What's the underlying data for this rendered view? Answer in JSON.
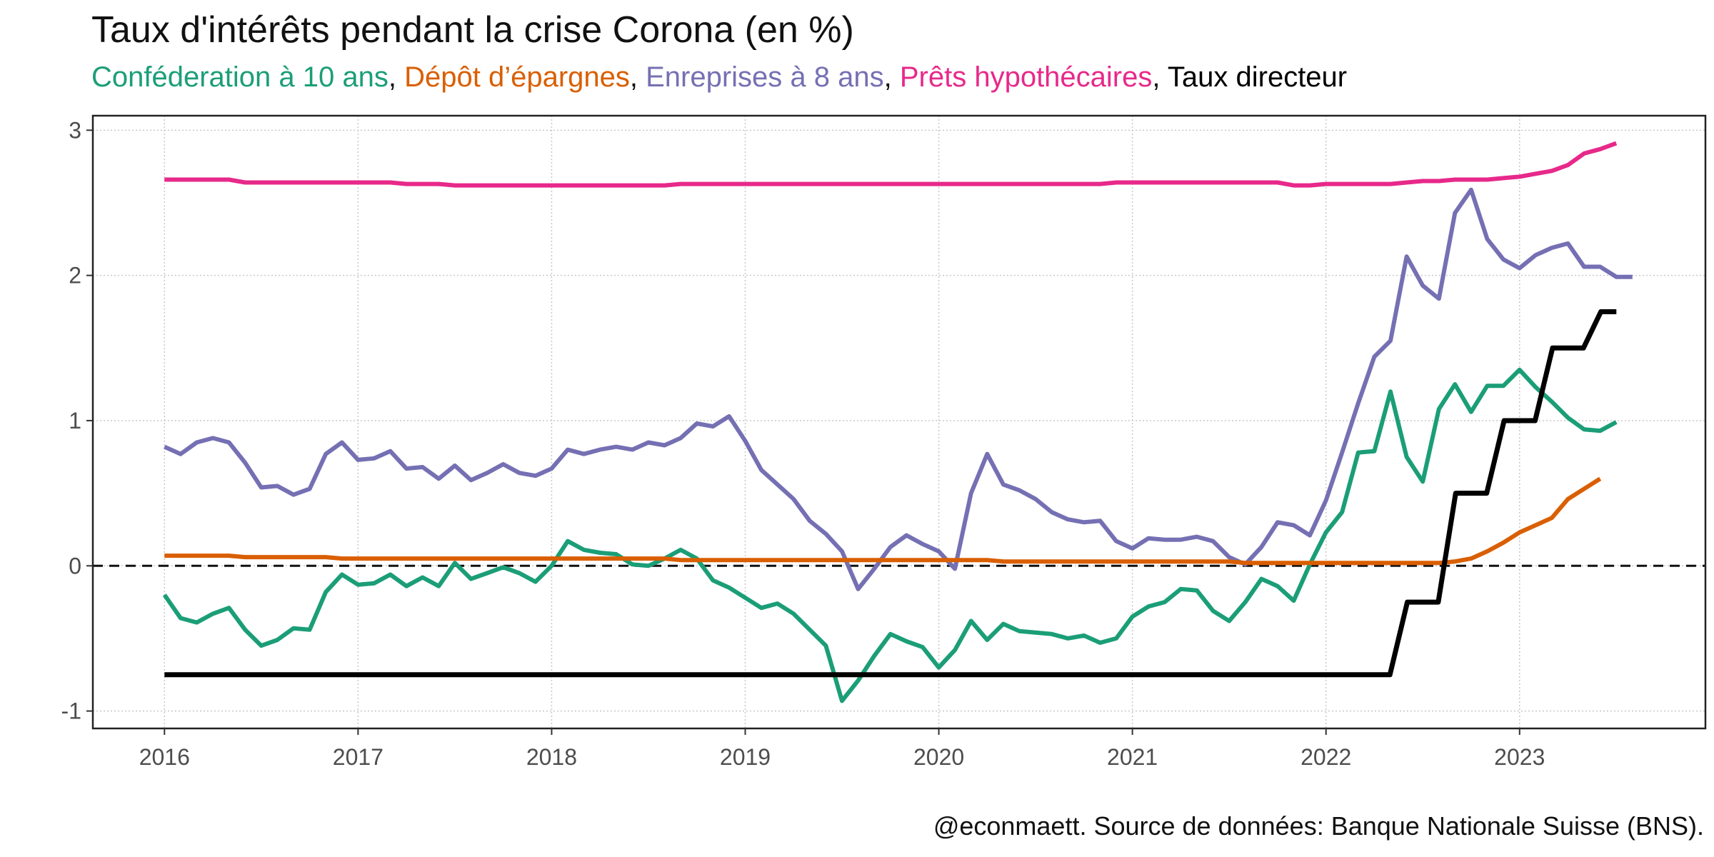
{
  "title": "Taux d'intérêts pendant la crise Corona (en %)",
  "subtitle": {
    "parts": [
      {
        "text": "Conféderation à 10 ans",
        "color": "#1b9e77"
      },
      {
        "text": ", ",
        "color": "#111111"
      },
      {
        "text": "Dépôt d’épargnes",
        "color": "#d95f02"
      },
      {
        "text": ", ",
        "color": "#111111"
      },
      {
        "text": "Enreprises à 8 ans",
        "color": "#7570b3"
      },
      {
        "text": ", ",
        "color": "#111111"
      },
      {
        "text": "Prêts hypothécaires",
        "color": "#e7298a"
      },
      {
        "text": ", ",
        "color": "#111111"
      },
      {
        "text": "Taux directeur",
        "color": "#000000"
      }
    ]
  },
  "caption": "@econmaett. Source de données: Banque Nationale Suisse (BNS).",
  "chart_data": {
    "type": "line",
    "xlim": [
      2015.63,
      2023.96
    ],
    "ylim": [
      -1.12,
      3.1
    ],
    "x_ticks": [
      2016,
      2017,
      2018,
      2019,
      2020,
      2021,
      2022,
      2023
    ],
    "x_tick_labels": [
      "2016",
      "2017",
      "2018",
      "2019",
      "2020",
      "2021",
      "2022",
      "2023"
    ],
    "y_ticks": [
      -1,
      0,
      1,
      2,
      3
    ],
    "y_tick_labels": [
      "-1",
      "0",
      "1",
      "2",
      "3"
    ],
    "zero_line": true,
    "grid": true,
    "series": [
      {
        "name": "Prêts hypothécaires",
        "color": "#e7298a",
        "start": 2016.0,
        "step": 0.08333,
        "values": [
          2.66,
          2.66,
          2.66,
          2.66,
          2.66,
          2.64,
          2.64,
          2.64,
          2.64,
          2.64,
          2.64,
          2.64,
          2.64,
          2.64,
          2.64,
          2.63,
          2.63,
          2.63,
          2.62,
          2.62,
          2.62,
          2.62,
          2.62,
          2.62,
          2.62,
          2.62,
          2.62,
          2.62,
          2.62,
          2.62,
          2.62,
          2.62,
          2.63,
          2.63,
          2.63,
          2.63,
          2.63,
          2.63,
          2.63,
          2.63,
          2.63,
          2.63,
          2.63,
          2.63,
          2.63,
          2.63,
          2.63,
          2.63,
          2.63,
          2.63,
          2.63,
          2.63,
          2.63,
          2.63,
          2.63,
          2.63,
          2.63,
          2.63,
          2.63,
          2.64,
          2.64,
          2.64,
          2.64,
          2.64,
          2.64,
          2.64,
          2.64,
          2.64,
          2.64,
          2.64,
          2.62,
          2.62,
          2.63,
          2.63,
          2.63,
          2.63,
          2.63,
          2.64,
          2.65,
          2.65,
          2.66,
          2.66,
          2.66,
          2.67,
          2.68,
          2.7,
          2.72,
          2.76,
          2.84,
          2.87,
          2.91
        ]
      },
      {
        "name": "Enreprises à 8 ans",
        "color": "#7570b3",
        "start": 2016.0,
        "step": 0.08333,
        "values": [
          0.82,
          0.77,
          0.85,
          0.88,
          0.85,
          0.71,
          0.54,
          0.55,
          0.49,
          0.53,
          0.77,
          0.85,
          0.73,
          0.74,
          0.79,
          0.67,
          0.68,
          0.6,
          0.69,
          0.59,
          0.64,
          0.7,
          0.64,
          0.62,
          0.67,
          0.8,
          0.77,
          0.8,
          0.82,
          0.8,
          0.85,
          0.83,
          0.88,
          0.98,
          0.96,
          1.03,
          0.86,
          0.66,
          0.56,
          0.46,
          0.31,
          0.22,
          0.1,
          -0.16,
          -0.02,
          0.13,
          0.21,
          0.15,
          0.1,
          -0.02,
          0.5,
          0.77,
          0.56,
          0.52,
          0.46,
          0.37,
          0.32,
          0.3,
          0.31,
          0.17,
          0.12,
          0.19,
          0.18,
          0.18,
          0.2,
          0.17,
          0.06,
          0.01,
          0.13,
          0.3,
          0.28,
          0.21,
          0.45,
          0.78,
          1.12,
          1.44,
          1.55,
          2.13,
          1.93,
          1.84,
          2.43,
          2.59,
          2.25,
          2.11,
          2.05,
          2.14,
          2.19,
          2.22,
          2.06,
          2.06,
          1.99,
          1.99
        ]
      },
      {
        "name": "Conféderation à 10 ans",
        "color": "#1b9e77",
        "start": 2016.0,
        "step": 0.08333,
        "values": [
          -0.2,
          -0.36,
          -0.39,
          -0.33,
          -0.29,
          -0.44,
          -0.55,
          -0.51,
          -0.43,
          -0.44,
          -0.18,
          -0.06,
          -0.13,
          -0.12,
          -0.06,
          -0.14,
          -0.08,
          -0.14,
          0.02,
          -0.09,
          -0.05,
          -0.01,
          -0.05,
          -0.11,
          0.0,
          0.17,
          0.11,
          0.09,
          0.08,
          0.01,
          0.0,
          0.05,
          0.11,
          0.05,
          -0.1,
          -0.15,
          -0.22,
          -0.29,
          -0.26,
          -0.33,
          -0.44,
          -0.55,
          -0.93,
          -0.79,
          -0.62,
          -0.47,
          -0.52,
          -0.56,
          -0.7,
          -0.58,
          -0.38,
          -0.51,
          -0.4,
          -0.45,
          -0.46,
          -0.47,
          -0.5,
          -0.48,
          -0.53,
          -0.5,
          -0.35,
          -0.28,
          -0.25,
          -0.16,
          -0.17,
          -0.31,
          -0.38,
          -0.25,
          -0.09,
          -0.14,
          -0.24,
          0.01,
          0.23,
          0.37,
          0.78,
          0.79,
          1.2,
          0.75,
          0.58,
          1.08,
          1.25,
          1.06,
          1.24,
          1.24,
          1.35,
          1.23,
          1.13,
          1.02,
          0.94,
          0.93,
          0.99
        ]
      },
      {
        "name": "Dépôt d’épargnes",
        "color": "#d95f02",
        "start": 2016.0,
        "step": 0.08333,
        "values": [
          0.07,
          0.07,
          0.07,
          0.07,
          0.07,
          0.06,
          0.06,
          0.06,
          0.06,
          0.06,
          0.06,
          0.05,
          0.05,
          0.05,
          0.05,
          0.05,
          0.05,
          0.05,
          0.05,
          0.05,
          0.05,
          0.05,
          0.05,
          0.05,
          0.05,
          0.05,
          0.05,
          0.05,
          0.05,
          0.05,
          0.05,
          0.05,
          0.04,
          0.04,
          0.04,
          0.04,
          0.04,
          0.04,
          0.04,
          0.04,
          0.04,
          0.04,
          0.04,
          0.04,
          0.04,
          0.04,
          0.04,
          0.04,
          0.04,
          0.04,
          0.04,
          0.04,
          0.03,
          0.03,
          0.03,
          0.03,
          0.03,
          0.03,
          0.03,
          0.03,
          0.03,
          0.03,
          0.03,
          0.03,
          0.03,
          0.03,
          0.03,
          0.02,
          0.02,
          0.02,
          0.02,
          0.02,
          0.02,
          0.02,
          0.02,
          0.02,
          0.02,
          0.02,
          0.02,
          0.02,
          0.03,
          0.05,
          0.1,
          0.16,
          0.23,
          0.28,
          0.33,
          0.46,
          0.53,
          0.6
        ]
      },
      {
        "name": "Taux directeur",
        "color": "#000000",
        "points": [
          [
            2016.0,
            -0.75
          ],
          [
            2022.33,
            -0.75
          ],
          [
            2022.42,
            -0.25
          ],
          [
            2022.58,
            -0.25
          ],
          [
            2022.67,
            0.5
          ],
          [
            2022.83,
            0.5
          ],
          [
            2022.92,
            1.0
          ],
          [
            2023.08,
            1.0
          ],
          [
            2023.17,
            1.5
          ],
          [
            2023.33,
            1.5
          ],
          [
            2023.42,
            1.75
          ],
          [
            2023.5,
            1.75
          ]
        ]
      }
    ]
  }
}
